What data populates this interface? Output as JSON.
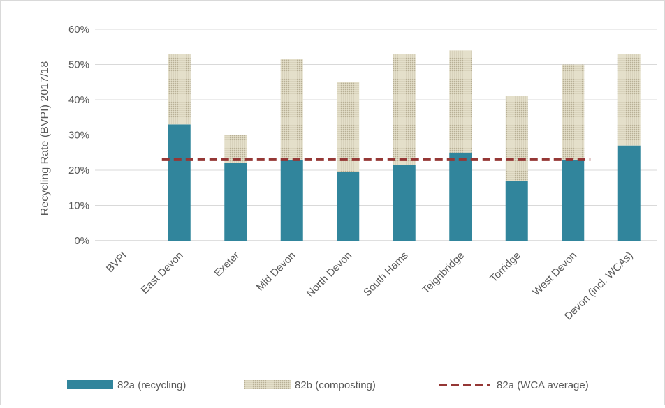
{
  "chart_data": {
    "type": "bar",
    "title": "",
    "xlabel": "",
    "ylabel": "Recycling Rate (BVPI) 2017/18",
    "ylim": [
      0,
      0.6
    ],
    "yticks": [
      0,
      0.1,
      0.2,
      0.3,
      0.4,
      0.5,
      0.6
    ],
    "ytick_labels": [
      "0%",
      "10%",
      "20%",
      "30%",
      "40%",
      "50%",
      "60%"
    ],
    "categories": [
      "BVPI",
      "East Devon",
      "Exeter",
      "Mid Devon",
      "North Devon",
      "South Hams",
      "Teignbridge",
      "Torridge",
      "West Devon",
      "Devon (incl. WCAs)"
    ],
    "series": [
      {
        "name": "82a (recycling)",
        "kind": "bar-stacked",
        "color": "#31859c",
        "values": [
          null,
          0.33,
          0.22,
          0.23,
          0.195,
          0.215,
          0.25,
          0.17,
          0.23,
          0.27
        ]
      },
      {
        "name": "82b (composting)",
        "kind": "bar-stacked",
        "color": "#ddd9c4",
        "values": [
          null,
          0.2,
          0.08,
          0.285,
          0.255,
          0.315,
          0.29,
          0.24,
          0.27,
          0.26
        ]
      },
      {
        "name": "82a (WCA average)",
        "kind": "line-dashed",
        "color": "#953735",
        "values": [
          null,
          0.23,
          0.23,
          0.23,
          0.23,
          0.23,
          0.23,
          0.23,
          0.23,
          null
        ]
      }
    ],
    "grid": true,
    "legend_position": "bottom"
  }
}
